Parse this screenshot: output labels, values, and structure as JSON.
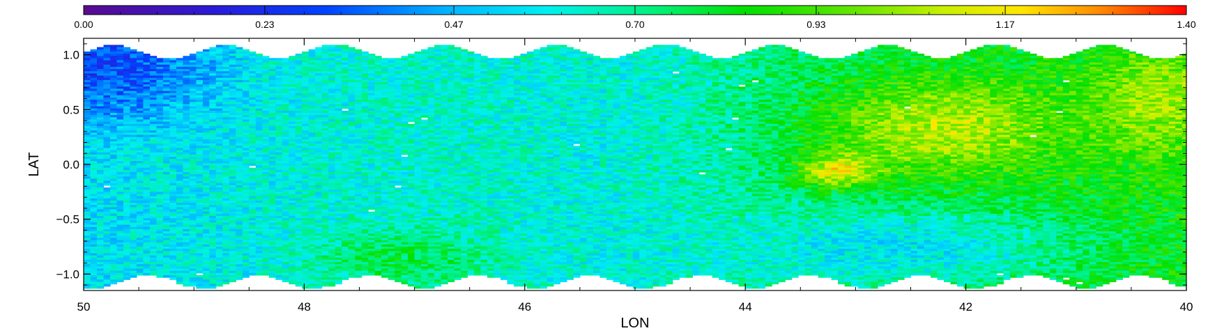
{
  "chart_data": {
    "type": "heatmap",
    "title": "",
    "xlabel": "LON",
    "ylabel": "LAT",
    "xlim": [
      50,
      40
    ],
    "ylim": [
      -1.15,
      1.15
    ],
    "x_ticks": [
      "50",
      "48",
      "46",
      "44",
      "42",
      "40"
    ],
    "x_tick_values": [
      50,
      48,
      46,
      44,
      42,
      40
    ],
    "y_ticks": [
      "1.0",
      "0.5",
      "0.0",
      "−0.5",
      "−1.0"
    ],
    "y_tick_values": [
      1.0,
      0.5,
      0.0,
      -0.5,
      -1.0
    ],
    "colorbar": {
      "range": [
        0.0,
        1.4
      ],
      "tick_labels": [
        "0.00",
        "0.23",
        "0.47",
        "0.70",
        "0.93",
        "1.17",
        "1.40"
      ],
      "tick_values": [
        0.0,
        0.23,
        0.47,
        0.7,
        0.93,
        1.17,
        1.4
      ],
      "colormap": "rainbow"
    },
    "grid": false,
    "value_regions": [
      {
        "lon_range": [
          50,
          48.5
        ],
        "lat_range": [
          0.2,
          1.05
        ],
        "approx_value": 0.3
      },
      {
        "lon_range": [
          50,
          46
        ],
        "lat_range": [
          -1.05,
          0.2
        ],
        "approx_value": 0.55
      },
      {
        "lon_range": [
          47,
          44
        ],
        "lat_range": [
          -1.05,
          1.05
        ],
        "approx_value": 0.65
      },
      {
        "lon_range": [
          44,
          40
        ],
        "lat_range": [
          -0.3,
          1.05
        ],
        "approx_value": 0.9
      },
      {
        "lon_range": [
          42.8,
          41.5
        ],
        "lat_range": [
          0.2,
          0.6
        ],
        "approx_value": 1.1
      },
      {
        "lon_range": [
          43.5,
          42.8
        ],
        "lat_range": [
          -0.3,
          0.1
        ],
        "approx_value": 1.25
      },
      {
        "lon_range": [
          44,
          41
        ],
        "lat_range": [
          -1.05,
          -0.3
        ],
        "approx_value": 0.6
      }
    ]
  }
}
